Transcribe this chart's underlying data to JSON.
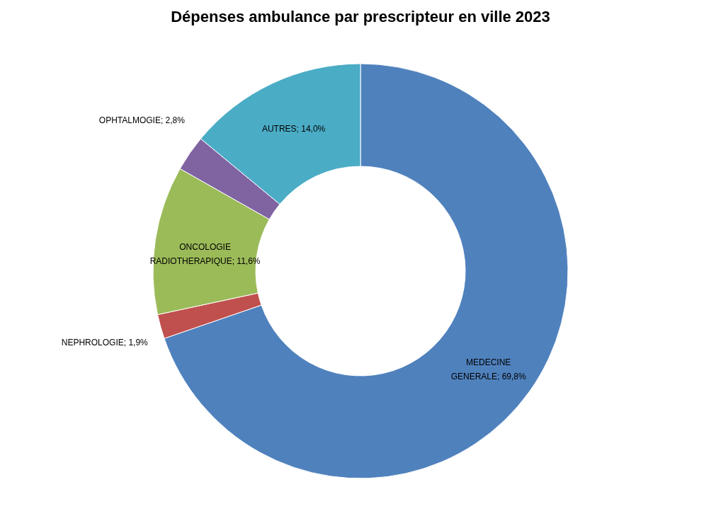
{
  "chart_data": {
    "type": "donut",
    "title": "Dépenses ambulance par prescripteur en ville 2023",
    "categories": [
      "MEDECINE GENERALE",
      "NEPHROLOGIE",
      "ONCOLOGIE RADIOTHERAPIQUE",
      "OPHTALMOGIE",
      "AUTRES"
    ],
    "values": [
      69.8,
      1.9,
      11.6,
      2.8,
      14.0
    ],
    "value_labels": [
      "69,8%",
      "1,9%",
      "11,6%",
      "2,8%",
      "14,0%"
    ],
    "colors": [
      "#4f81bd",
      "#c0504d",
      "#9bbb59",
      "#8064a2",
      "#4bacc6"
    ],
    "legend": false
  }
}
